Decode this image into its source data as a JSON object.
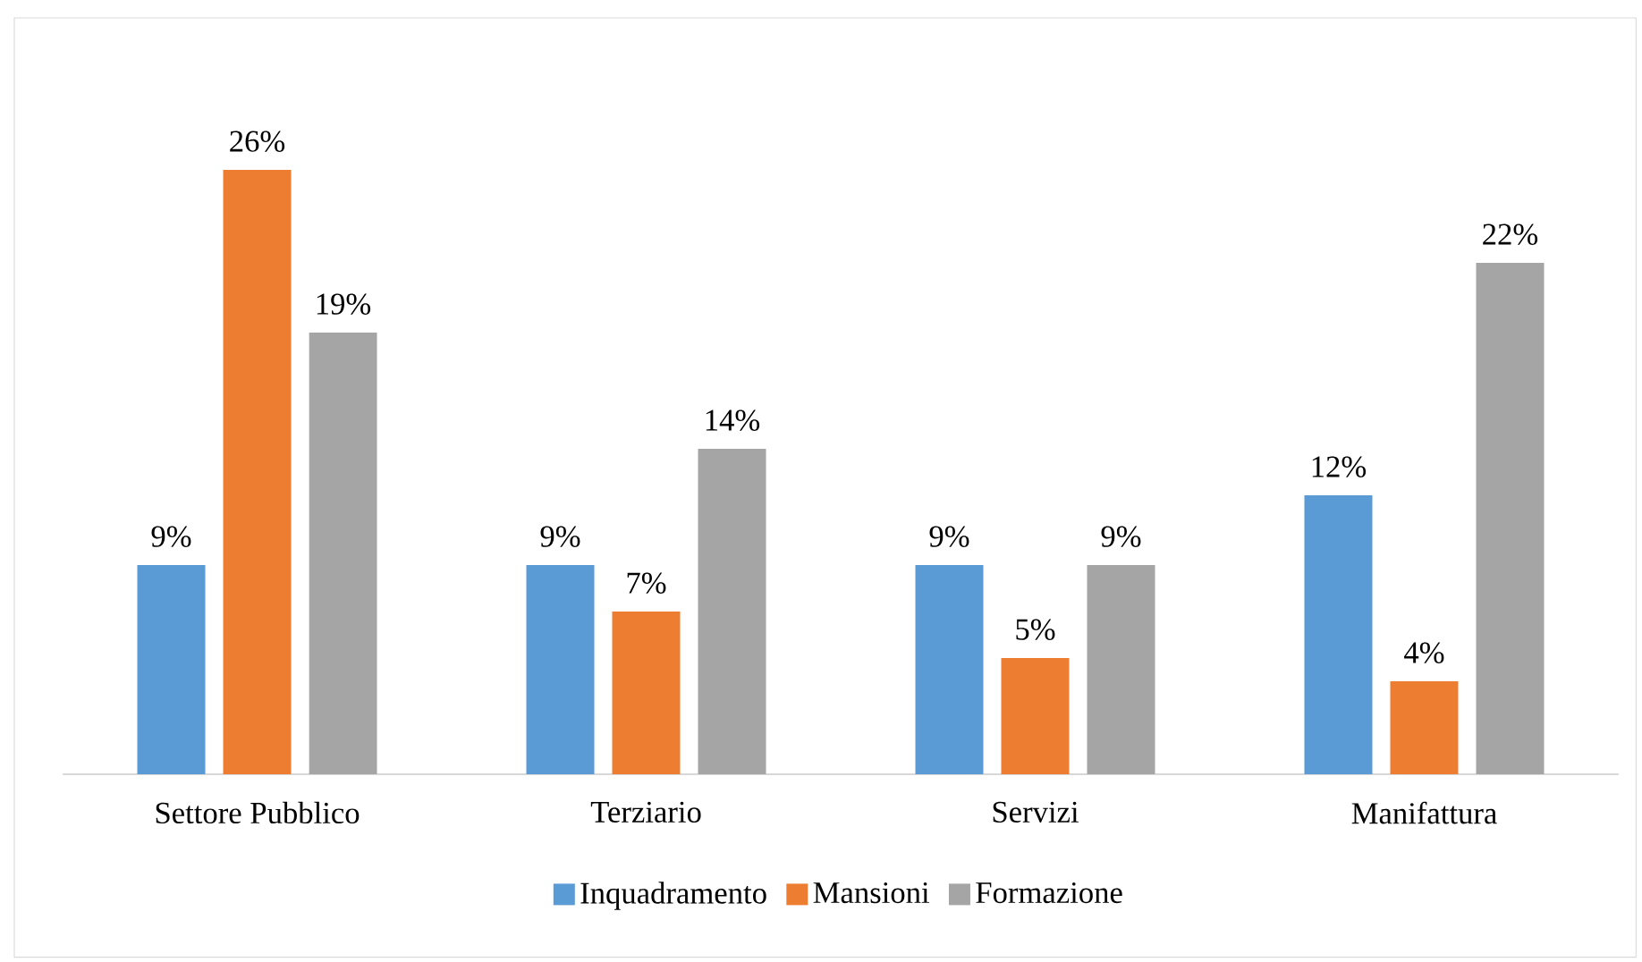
{
  "chart_data": {
    "type": "bar",
    "categories": [
      "Settore Pubblico",
      "Terziario",
      "Servizi",
      "Manifattura"
    ],
    "series": [
      {
        "name": "Inquadramento",
        "color": "#5b9bd5",
        "values": [
          9,
          9,
          9,
          12
        ],
        "value_labels": [
          "9%",
          "9%",
          "9%",
          "12%"
        ]
      },
      {
        "name": "Mansioni",
        "color": "#ed7d31",
        "values": [
          26,
          7,
          5,
          4
        ],
        "value_labels": [
          "26%",
          "7%",
          "5%",
          "4%"
        ]
      },
      {
        "name": "Formazione",
        "color": "#a5a5a5",
        "values": [
          19,
          14,
          9,
          22
        ],
        "value_labels": [
          "19%",
          "14%",
          "9%",
          "22%"
        ]
      }
    ],
    "legend": "bottom"
  }
}
